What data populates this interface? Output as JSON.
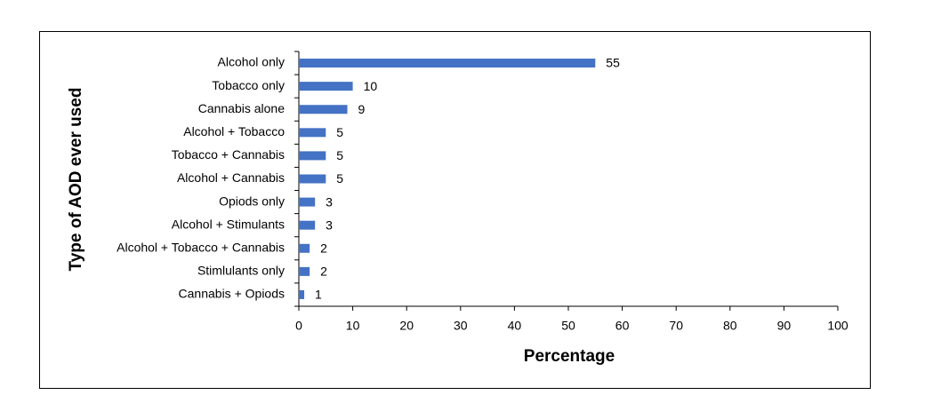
{
  "chart_data": {
    "type": "bar",
    "orientation": "horizontal",
    "x_label": "Percentage",
    "y_label": "Type of AOD ever used",
    "categories": [
      "Alcohol only",
      "Tobacco only",
      "Cannabis alone",
      "Alcohol + Tobacco",
      "Tobacco + Cannabis",
      "Alcohol + Cannabis",
      "Opiods only",
      "Alcohol + Stimulants",
      "Alcohol + Tobacco + Cannabis",
      "Stimlulants only",
      "Cannabis + Opiods"
    ],
    "values": [
      55,
      10,
      9,
      5,
      5,
      5,
      3,
      3,
      2,
      2,
      1
    ],
    "color": "#4472c4",
    "xlim": [
      0,
      100
    ],
    "xticks": [
      0,
      10,
      20,
      30,
      40,
      50,
      60,
      70,
      80,
      90,
      100
    ],
    "grid": false
  }
}
